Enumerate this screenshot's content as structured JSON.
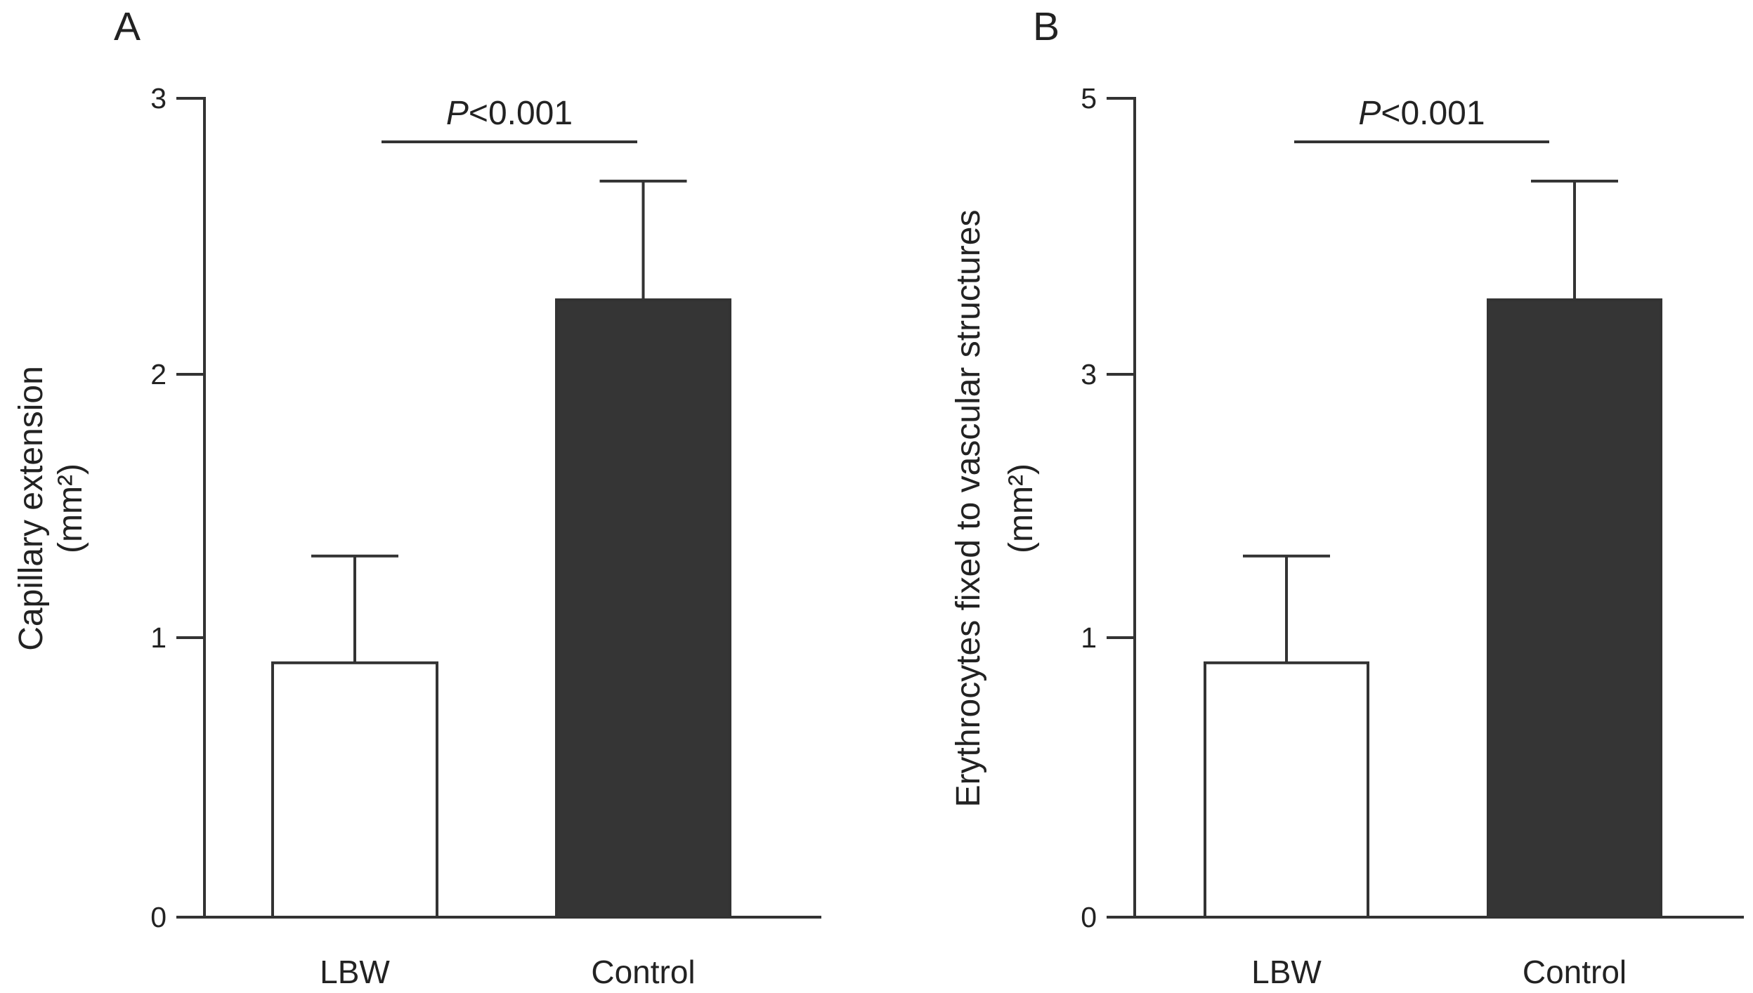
{
  "chart_data": [
    {
      "panel": "A",
      "type": "bar",
      "categories": [
        "LBW",
        "Control"
      ],
      "values": [
        0.91,
        2.27
      ],
      "error_upper": [
        1.31,
        2.7
      ],
      "bar_colors": [
        "#ffffff",
        "#353535"
      ],
      "ylabel": "Capillary extension",
      "ylabel_unit": "(mm²)",
      "yticks": [
        "0",
        "1",
        "2",
        "3"
      ],
      "ylim": [
        0,
        3
      ],
      "annotation": {
        "italic": "P",
        "text": "<0.001"
      },
      "grid": false
    },
    {
      "panel": "B",
      "type": "bar",
      "categories": [
        "LBW",
        "Control"
      ],
      "values": [
        0.91,
        3.54
      ],
      "error_upper": [
        1.62,
        4.4
      ],
      "bar_colors": [
        "#ffffff",
        "#353535"
      ],
      "ylabel": "Erythrocytes fixed to vascular structures",
      "ylabel_unit": "(mm²)",
      "yticks": [
        "0",
        "1",
        "3",
        "5"
      ],
      "ylim": [
        0,
        5
      ],
      "annotation": {
        "italic": "P",
        "text": "<0.001"
      },
      "grid": false
    }
  ]
}
